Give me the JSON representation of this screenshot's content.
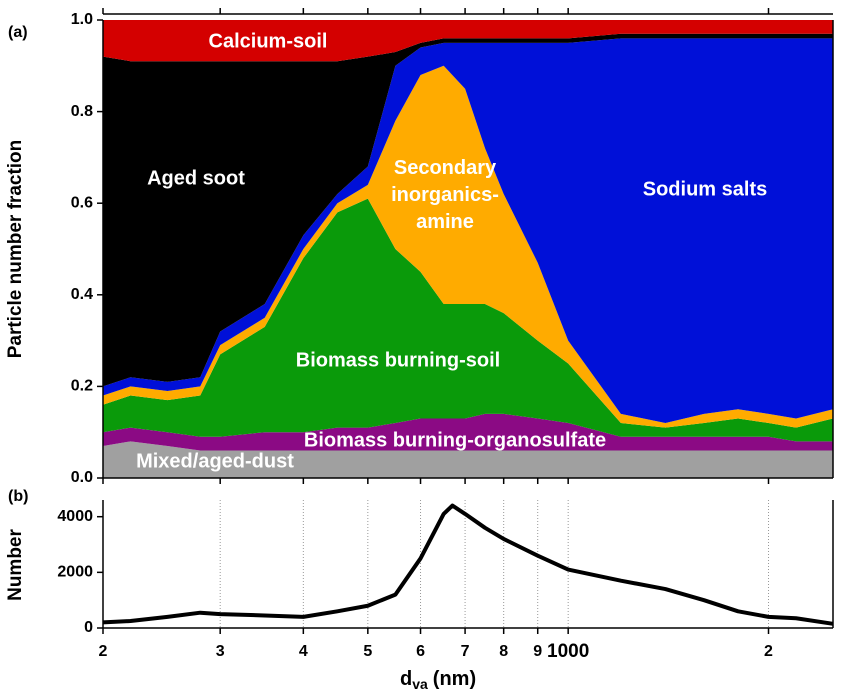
{
  "chart_data": [
    {
      "type": "stacked_area",
      "panel": "(a)",
      "ylabel": "Particle number fraction",
      "x": [
        200,
        220,
        250,
        280,
        300,
        350,
        400,
        450,
        500,
        550,
        600,
        650,
        700,
        750,
        800,
        900,
        1000,
        1200,
        1400,
        1600,
        1800,
        2000,
        2200,
        2500
      ],
      "xlim": [
        200,
        2500
      ],
      "xscale": "log",
      "xticks": [
        {
          "value": 200,
          "label": "2"
        },
        {
          "value": 300,
          "label": "3"
        },
        {
          "value": 400,
          "label": "4"
        },
        {
          "value": 500,
          "label": "5"
        },
        {
          "value": 600,
          "label": "6"
        },
        {
          "value": 700,
          "label": "7"
        },
        {
          "value": 800,
          "label": "8"
        },
        {
          "value": 900,
          "label": "9"
        },
        1000,
        {
          "value": 2000,
          "label": "2"
        }
      ],
      "ylim": [
        0,
        1
      ],
      "yticks": [
        {
          "value": 0,
          "label": "0.0"
        },
        0.2,
        0.4,
        0.6,
        0.8,
        {
          "value": 1,
          "label": "1.0"
        }
      ],
      "series": [
        {
          "name": "Mixed/aged-dust",
          "color": "#a0a0a0",
          "values": [
            0.07,
            0.08,
            0.07,
            0.06,
            0.06,
            0.06,
            0.06,
            0.06,
            0.06,
            0.06,
            0.06,
            0.06,
            0.06,
            0.06,
            0.06,
            0.06,
            0.06,
            0.06,
            0.06,
            0.06,
            0.06,
            0.06,
            0.06,
            0.06
          ]
        },
        {
          "name": "Biomass burning-organosulfate",
          "color": "#8b0a84",
          "values": [
            0.03,
            0.03,
            0.03,
            0.03,
            0.03,
            0.04,
            0.04,
            0.05,
            0.05,
            0.06,
            0.07,
            0.07,
            0.07,
            0.08,
            0.08,
            0.07,
            0.06,
            0.03,
            0.03,
            0.03,
            0.03,
            0.03,
            0.02,
            0.02
          ]
        },
        {
          "name": "Biomass burning-soil",
          "color": "#0a9a0a",
          "values": [
            0.06,
            0.07,
            0.07,
            0.09,
            0.18,
            0.23,
            0.38,
            0.47,
            0.5,
            0.38,
            0.32,
            0.25,
            0.25,
            0.24,
            0.22,
            0.17,
            0.13,
            0.03,
            0.02,
            0.03,
            0.04,
            0.03,
            0.03,
            0.05
          ]
        },
        {
          "name": "Secondary inorganics-amine",
          "color": "#ffab00",
          "values": [
            0.02,
            0.02,
            0.02,
            0.02,
            0.02,
            0.02,
            0.02,
            0.02,
            0.03,
            0.28,
            0.43,
            0.52,
            0.47,
            0.34,
            0.26,
            0.17,
            0.05,
            0.02,
            0.01,
            0.02,
            0.02,
            0.02,
            0.02,
            0.02
          ]
        },
        {
          "name": "Sodium salts",
          "color": "#0010d8",
          "values": [
            0.02,
            0.02,
            0.02,
            0.02,
            0.03,
            0.03,
            0.03,
            0.02,
            0.04,
            0.12,
            0.06,
            0.05,
            0.1,
            0.23,
            0.33,
            0.48,
            0.65,
            0.82,
            0.84,
            0.82,
            0.81,
            0.82,
            0.83,
            0.81
          ]
        },
        {
          "name": "Aged soot",
          "color": "#000000",
          "values": [
            0.72,
            0.69,
            0.7,
            0.69,
            0.59,
            0.53,
            0.38,
            0.29,
            0.24,
            0.03,
            0.01,
            0.01,
            0.01,
            0.01,
            0.01,
            0.01,
            0.01,
            0.01,
            0.01,
            0.01,
            0.01,
            0.01,
            0.01,
            0.01
          ]
        },
        {
          "name": "Calcium-soil",
          "color": "#d40000",
          "values": [
            0.08,
            0.09,
            0.09,
            0.09,
            0.09,
            0.09,
            0.09,
            0.09,
            0.08,
            0.07,
            0.05,
            0.04,
            0.04,
            0.04,
            0.04,
            0.04,
            0.04,
            0.03,
            0.03,
            0.03,
            0.03,
            0.03,
            0.03,
            0.03
          ]
        }
      ]
    },
    {
      "type": "line",
      "panel": "(b)",
      "ylabel": "Number",
      "xlabel": "d",
      "xlabel_sub": "va",
      "xlabel_unit": "(nm)",
      "x": [
        200,
        220,
        250,
        280,
        300,
        350,
        400,
        450,
        500,
        550,
        600,
        650,
        670,
        700,
        750,
        800,
        900,
        1000,
        1200,
        1400,
        1600,
        1800,
        2000,
        2200,
        2500
      ],
      "values": [
        200,
        250,
        400,
        550,
        500,
        450,
        400,
        600,
        800,
        1200,
        2500,
        4100,
        4400,
        4100,
        3600,
        3200,
        2600,
        2100,
        1700,
        1400,
        1000,
        600,
        400,
        350,
        150
      ],
      "color": "#000000",
      "xlim": [
        200,
        2500
      ],
      "xscale": "log",
      "xticks": [
        {
          "value": 200,
          "label": "2"
        },
        {
          "value": 300,
          "label": "3"
        },
        {
          "value": 400,
          "label": "4"
        },
        {
          "value": 500,
          "label": "5"
        },
        {
          "value": 600,
          "label": "6"
        },
        {
          "value": 700,
          "label": "7"
        },
        {
          "value": 800,
          "label": "8"
        },
        {
          "value": 900,
          "label": "9"
        },
        1000,
        {
          "value": 2000,
          "label": "2"
        }
      ],
      "ylim": [
        0,
        4600
      ],
      "yticks": [
        0,
        2000,
        4000
      ],
      "grid": true
    }
  ]
}
